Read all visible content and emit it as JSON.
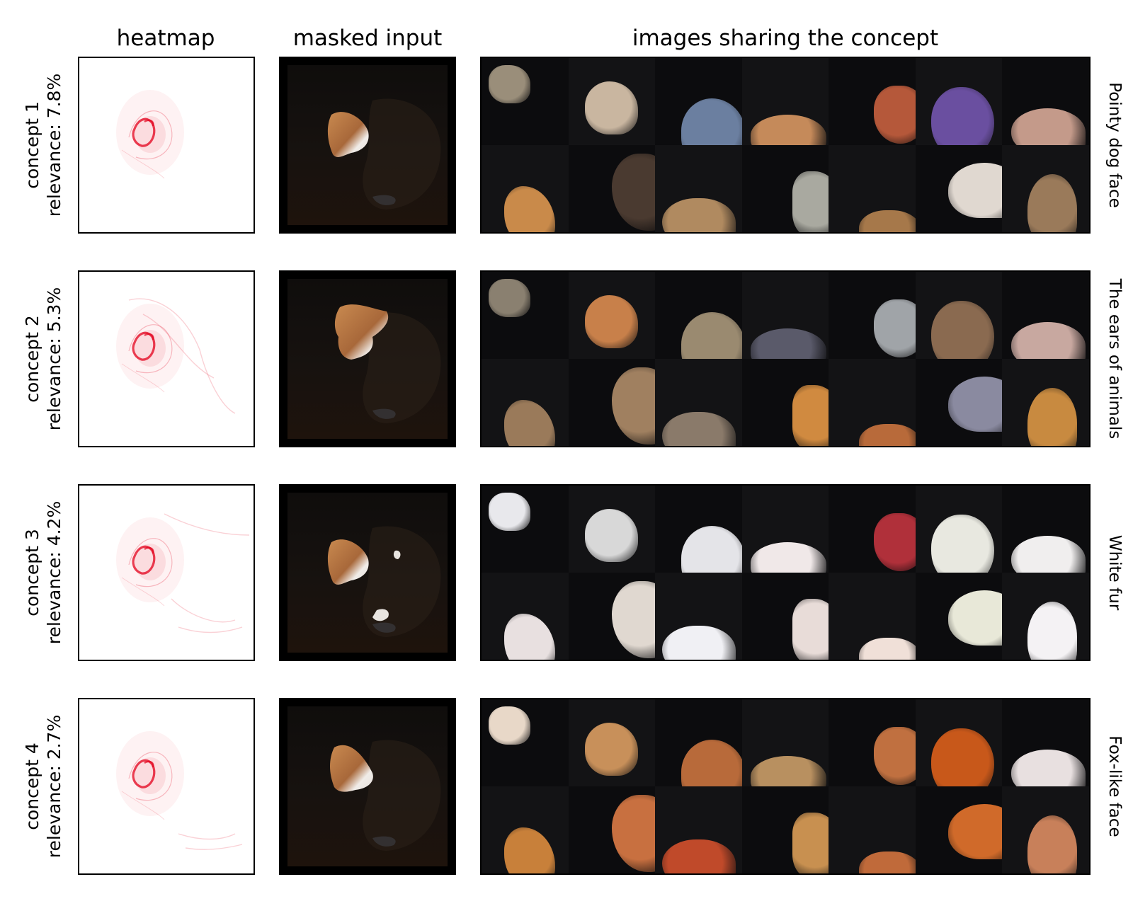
{
  "headers": {
    "heatmap": "heatmap",
    "masked_input": "masked input",
    "images": "images sharing the concept"
  },
  "colors": {
    "heat": "#e3001b",
    "frame": "#000000",
    "background": "#ffffff"
  },
  "concepts": [
    {
      "label": "concept 1",
      "relevance": "relevance: 7.8%",
      "description": "Pointy dog face",
      "tile_colors": [
        "#9a8e7a",
        "#c9b6a0",
        "#6b7fa0",
        "#c58a5a",
        "#b5583a",
        "#6a4fa0",
        "#c49a8a",
        "#c98a4a",
        "#4a3a30",
        "#b08a60",
        "#a9a9a0",
        "#a6784a",
        "#e0d8d0",
        "#9a7a5a"
      ]
    },
    {
      "label": "concept 2",
      "relevance": "relevance: 5.3%",
      "description": "The ears of animals",
      "tile_colors": [
        "#8a8070",
        "#c8804a",
        "#9a8a70",
        "#5a5a6a",
        "#a0a4a8",
        "#8a6a50",
        "#c8a8a0",
        "#9a7a5a",
        "#a08060",
        "#8a7a6a",
        "#d08a40",
        "#b86a3a",
        "#8a8aa0",
        "#c88a40"
      ]
    },
    {
      "label": "concept 3",
      "relevance": "relevance: 4.2%",
      "description": "White fur",
      "tile_colors": [
        "#e8e8ec",
        "#d8d8d8",
        "#e4e4e8",
        "#f0e8e8",
        "#b0303a",
        "#e8e8e0",
        "#f0eeee",
        "#e8e0e0",
        "#e0d8d0",
        "#f0f0f4",
        "#e8dcd8",
        "#f0e0d8",
        "#e8e8d8",
        "#f4f2f4"
      ]
    },
    {
      "label": "concept 4",
      "relevance": "relevance: 2.7%",
      "description": "Fox-like face",
      "tile_colors": [
        "#e8d8c8",
        "#c8905a",
        "#b86a3a",
        "#b89060",
        "#c07040",
        "#c8581a",
        "#e8e0e0",
        "#c8803a",
        "#c87040",
        "#c04a2a",
        "#c89050",
        "#c06a3a",
        "#d06a2a",
        "#c8805a"
      ]
    }
  ]
}
